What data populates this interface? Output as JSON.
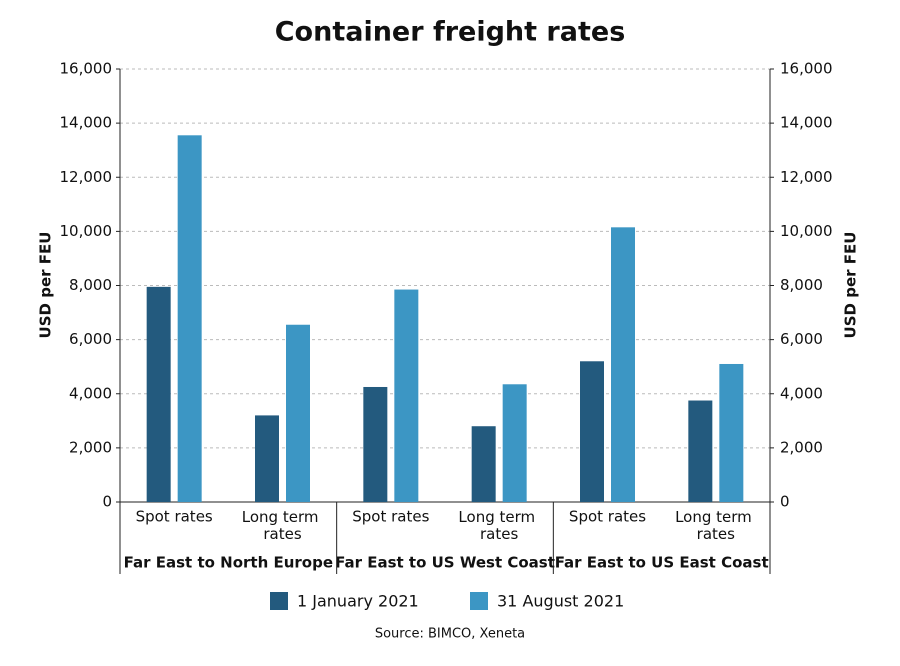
{
  "chart_data": {
    "type": "bar",
    "title": "Container freight rates",
    "y_label": "USD per FEU",
    "y2_label": "USD per FEU",
    "categories": [
      "Spot rates",
      "Long term rates",
      "Spot rates",
      "Long term rates",
      "Spot rates",
      "Long term rates"
    ],
    "groups": [
      "Far East to North Europe",
      "Far East to US West Coast",
      "Far East to US East Coast"
    ],
    "series": [
      {
        "name": "1 January 2021",
        "color": "#235a7e",
        "values": [
          7950,
          3200,
          4250,
          2800,
          5200,
          3750
        ]
      },
      {
        "name": "31 August 2021",
        "color": "#3c96c4",
        "values": [
          13550,
          6550,
          7850,
          4350,
          10150,
          5100
        ]
      }
    ],
    "ylim": [
      0,
      16000
    ],
    "yticks": [
      0,
      {
        "value": 2000,
        "label": "2,000"
      },
      {
        "value": 4000,
        "label": "4,000"
      },
      {
        "value": 6000,
        "label": "6,000"
      },
      {
        "value": 8000,
        "label": "8,000"
      },
      {
        "value": 10000,
        "label": "10,000"
      },
      {
        "value": 12000,
        "label": "12,000"
      },
      {
        "value": 14000,
        "label": "14,000"
      },
      {
        "value": 16000,
        "label": "16,000"
      }
    ],
    "y2lim": [
      0,
      16000
    ],
    "y2ticks": [
      0,
      {
        "value": 2000,
        "label": "2,000"
      },
      {
        "value": 4000,
        "label": "4,000"
      },
      {
        "value": 6000,
        "label": "6,000"
      },
      {
        "value": 8000,
        "label": "8,000"
      },
      {
        "value": 10000,
        "label": "10,000"
      },
      {
        "value": 12000,
        "label": "12,000"
      },
      {
        "value": 14000,
        "label": "14,000"
      },
      {
        "value": 16000,
        "label": "16,000"
      }
    ],
    "grid": true,
    "legend": "bottom",
    "source": "Source: BIMCO, Xeneta"
  }
}
